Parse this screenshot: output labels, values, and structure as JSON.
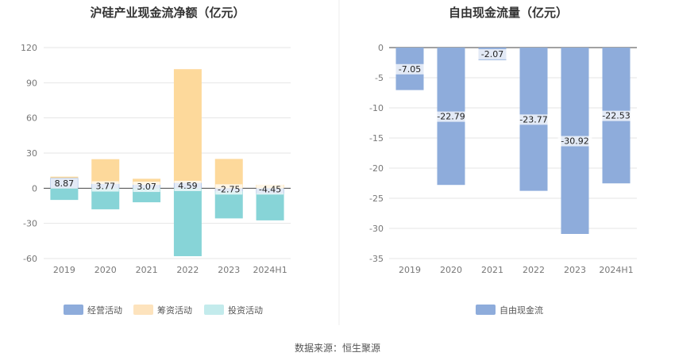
{
  "chart_data": [
    {
      "type": "bar",
      "stacked": true,
      "title": "沪硅产业现金流净额（亿元）",
      "categories": [
        "2019",
        "2020",
        "2021",
        "2022",
        "2023",
        "2024H1"
      ],
      "ylim": [
        -60,
        120
      ],
      "yticks": [
        120,
        90,
        60,
        30,
        0,
        -30,
        -60
      ],
      "grid": true,
      "legend_position": "bottom",
      "colors": {
        "经营活动": "#8eacdb",
        "筹资活动": "#fdd99b",
        "投资活动": "#87d4d7"
      },
      "legend_swatch_colors": [
        "#8eacdb",
        "#fde3bd",
        "#c3ebec"
      ],
      "series": [
        {
          "name": "经营活动",
          "values": [
            8.87,
            3.77,
            3.07,
            4.59,
            -2.75,
            -4.45
          ],
          "labels": [
            "8.87",
            "3.77",
            "3.07",
            "4.59",
            "-2.75",
            "-4.45"
          ]
        },
        {
          "name": "筹资活动",
          "values": [
            1,
            21,
            5,
            97,
            25,
            3
          ]
        },
        {
          "name": "投资活动",
          "values": [
            -10,
            -18,
            -12,
            -58,
            -23,
            -23
          ]
        }
      ]
    },
    {
      "type": "bar",
      "title": "自由现金流量（亿元）",
      "categories": [
        "2019",
        "2020",
        "2021",
        "2022",
        "2023",
        "2024H1"
      ],
      "ylim": [
        -35,
        0
      ],
      "yticks": [
        0,
        -5,
        -10,
        -15,
        -20,
        -25,
        -30,
        -35
      ],
      "grid": true,
      "legend_position": "bottom",
      "color": "#8eacdb",
      "series": [
        {
          "name": "自由现金流",
          "values": [
            -7.05,
            -22.79,
            -2.07,
            -23.77,
            -30.92,
            -22.53
          ],
          "labels": [
            "-7.05",
            "-22.79",
            "-2.07",
            "-23.77",
            "-30.92",
            "-22.53"
          ]
        }
      ]
    }
  ],
  "source": "数据来源：恒生聚源"
}
